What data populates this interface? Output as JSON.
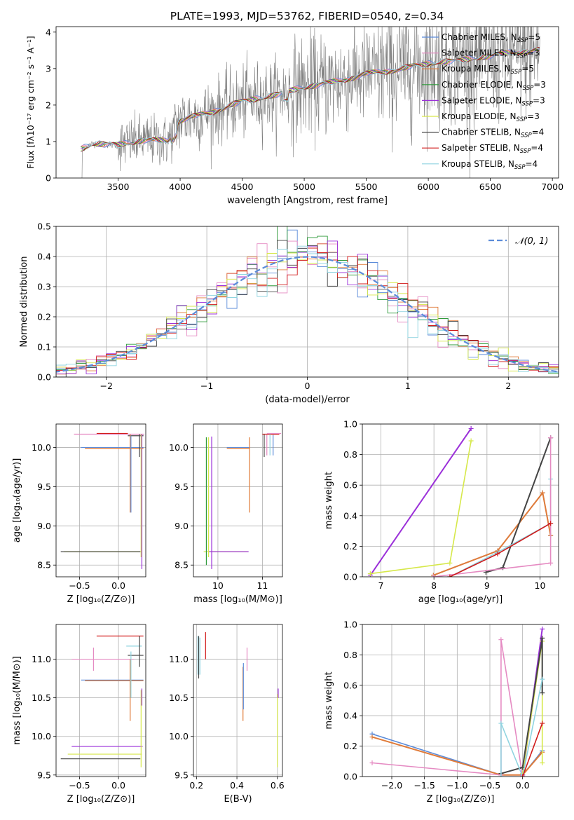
{
  "title": "PLATE=1993, MJD=53762, FIBERID=0540, z=0.34",
  "colors": {
    "Chabrier MILES": "#5b8bd9",
    "Salpeter MILES": "#e58ac2",
    "Kroupa MILES": "#e07b39",
    "Chabrier ELODIE": "#2e9a3a",
    "Salpeter ELODIE": "#9b30d9",
    "Kroupa ELODIE": "#d6e84a",
    "Chabrier STELIB": "#444444",
    "Salpeter STELIB": "#d11a1a",
    "Kroupa STELIB": "#8fd4e0",
    "data": "#808080",
    "normal": "#5b8bd9"
  },
  "legend": [
    {
      "name": "Chabrier MILES",
      "label": "Chabrier MILES, N",
      "sub": "SSP",
      "suffix": "=5"
    },
    {
      "name": "Salpeter MILES",
      "label": "Salpeter MILES, N",
      "sub": "SSP",
      "suffix": "=3"
    },
    {
      "name": "Kroupa MILES",
      "label": "Kroupa MILES, N",
      "sub": "SSP",
      "suffix": "=5"
    },
    {
      "name": "Chabrier ELODIE",
      "label": "Chabrier ELODIE, N",
      "sub": "SSP",
      "suffix": "=3"
    },
    {
      "name": "Salpeter ELODIE",
      "label": "Salpeter ELODIE, N",
      "sub": "SSP",
      "suffix": "=3"
    },
    {
      "name": "Kroupa ELODIE",
      "label": "Kroupa ELODIE, N",
      "sub": "SSP",
      "suffix": "=3"
    },
    {
      "name": "Chabrier STELIB",
      "label": "Chabrier STELIB, N",
      "sub": "SSP",
      "suffix": "=4"
    },
    {
      "name": "Salpeter STELIB",
      "label": "Salpeter STELIB, N",
      "sub": "SSP",
      "suffix": "=4"
    },
    {
      "name": "Kroupa STELIB",
      "label": "Kroupa STELIB, N",
      "sub": "SSP",
      "suffix": "=4"
    }
  ],
  "chart_data": [
    {
      "id": "spectrum",
      "type": "line",
      "xlabel": "wavelength [Angstrom, rest frame]",
      "ylabel": "Flux [f_λ 10^-17 erg cm^-2 s^-1 A^-1]",
      "xlim": [
        3000,
        7050
      ],
      "ylim": [
        0,
        4.15
      ],
      "xticks": [
        3500,
        4000,
        4500,
        5000,
        5500,
        6000,
        6500,
        7000
      ],
      "yticks": [
        0,
        1,
        2,
        3,
        4
      ],
      "grid": false,
      "legend_position": "top-right",
      "continuum": {
        "x": [
          3200,
          3300,
          3500,
          3700,
          3900,
          4000,
          4200,
          4500,
          4800,
          5000,
          5200,
          5500,
          5800,
          6000,
          6200,
          6500,
          6700,
          6900
        ],
        "y": [
          0.8,
          0.95,
          0.9,
          1.05,
          1.0,
          1.6,
          1.75,
          2.1,
          2.3,
          2.5,
          2.6,
          2.85,
          3.0,
          3.15,
          3.2,
          3.35,
          3.45,
          3.5
        ]
      }
    },
    {
      "id": "residuals",
      "type": "step",
      "xlabel": "(data-model)/error",
      "ylabel": "Normed distribution",
      "xlim": [
        -2.5,
        2.5
      ],
      "ylim": [
        0,
        0.5
      ],
      "xticks": [
        -2,
        -1,
        0,
        1,
        2
      ],
      "yticks": [
        0.0,
        0.1,
        0.2,
        0.3,
        0.4,
        0.5
      ],
      "grid": true,
      "bin_width": 0.1,
      "series_note": "9 histograms scattered around N(0,1)",
      "normal_label": "𝒩(0, 1)"
    },
    {
      "id": "age-Z",
      "type": "errorbar",
      "xlabel": "Z [log₁₀(Z/Z⊙)]",
      "ylabel": "age  [log₁₀(age/yr)]",
      "xlim": [
        -0.8,
        0.35
      ],
      "ylim": [
        8.35,
        10.3
      ],
      "xticks": [
        -0.5,
        0.0,
        0.5
      ],
      "yticks": [
        8.5,
        9.0,
        9.5,
        10.0
      ],
      "grid": true,
      "hbars": [
        {
          "series": "Salpeter MILES",
          "y": 10.17,
          "x1": -0.57,
          "x2": 0.33
        },
        {
          "series": "Salpeter STELIB",
          "y": 10.18,
          "x1": -0.28,
          "x2": 0.12
        },
        {
          "series": "Chabrier STELIB",
          "y": 10.15,
          "x1": 0.12,
          "x2": 0.32
        },
        {
          "series": "Chabrier MILES",
          "y": 10.0,
          "x1": -0.48,
          "x2": 0.32
        },
        {
          "series": "Kroupa MILES",
          "y": 9.99,
          "x1": -0.43,
          "x2": 0.32
        },
        {
          "series": "Kroupa ELODIE",
          "y": 8.67,
          "x1": -0.7,
          "x2": 0.3
        },
        {
          "series": "Chabrier STELIB",
          "y": 8.67,
          "x1": -0.74,
          "x2": 0.28
        }
      ],
      "vbars": [
        {
          "series": "Kroupa MILES",
          "x": 0.15,
          "y1": 9.17,
          "y2": 10.17
        },
        {
          "series": "Chabrier MILES",
          "x": 0.16,
          "y1": 9.17,
          "y2": 10.15
        },
        {
          "series": "Kroupa ELODIE",
          "x": 0.29,
          "y1": 8.6,
          "y2": 10.17
        },
        {
          "series": "Salpeter ELODIE",
          "x": 0.3,
          "y1": 8.45,
          "y2": 10.17
        },
        {
          "series": "Chabrier STELIB",
          "x": 0.27,
          "y1": 9.88,
          "y2": 10.17
        }
      ]
    },
    {
      "id": "age-mass",
      "type": "errorbar",
      "xlabel": "mass [log₁₀(M/M⊙)]",
      "ylabel": "",
      "xlim": [
        9.45,
        11.45
      ],
      "ylim": [
        8.35,
        10.3
      ],
      "xticks": [
        10,
        11
      ],
      "yticks": [
        8.5,
        9.0,
        9.5,
        10.0
      ],
      "grid": true,
      "hbars": [
        {
          "series": "Kroupa ELODIE",
          "y": 8.67,
          "x1": 9.68,
          "x2": 10.67
        },
        {
          "series": "Salpeter ELODIE",
          "y": 8.67,
          "x1": 9.8,
          "x2": 10.69
        },
        {
          "series": "Chabrier MILES",
          "y": 10.0,
          "x1": 10.2,
          "x2": 10.72
        },
        {
          "series": "Kroupa MILES",
          "y": 9.99,
          "x1": 10.2,
          "x2": 10.72
        },
        {
          "series": "Salpeter STELIB",
          "y": 10.17,
          "x1": 11.0,
          "x2": 11.38
        },
        {
          "series": "Salpeter MILES",
          "y": 10.18,
          "x1": 11.1,
          "x2": 11.42
        }
      ],
      "vbars": [
        {
          "series": "Chabrier ELODIE",
          "x": 9.74,
          "y1": 8.5,
          "y2": 10.13
        },
        {
          "series": "Kroupa ELODIE",
          "x": 9.79,
          "y1": 8.6,
          "y2": 10.13
        },
        {
          "series": "Salpeter ELODIE",
          "x": 9.86,
          "y1": 8.45,
          "y2": 10.14
        },
        {
          "series": "Kroupa MILES",
          "x": 10.71,
          "y1": 9.17,
          "y2": 10.13
        },
        {
          "series": "Chabrier STELIB",
          "x": 11.04,
          "y1": 9.88,
          "y2": 10.17
        },
        {
          "series": "Salpeter MILES",
          "x": 11.1,
          "y1": 9.9,
          "y2": 10.16
        },
        {
          "series": "Kroupa STELIB",
          "x": 11.17,
          "y1": 9.9,
          "y2": 10.17
        },
        {
          "series": "Chabrier MILES",
          "x": 11.24,
          "y1": 9.9,
          "y2": 10.16
        }
      ]
    },
    {
      "id": "weight-age",
      "type": "line",
      "xlabel": "age  [log₁₀(age/yr)]",
      "ylabel": "mass weight",
      "xlim": [
        6.65,
        10.35
      ],
      "ylim": [
        0,
        1.0
      ],
      "xticks": [
        7,
        8,
        9,
        10
      ],
      "yticks": [
        0.0,
        0.2,
        0.4,
        0.6,
        0.8,
        1.0
      ],
      "grid": true,
      "series": [
        {
          "name": "Salpeter ELODIE",
          "x": [
            6.8,
            8.7
          ],
          "y": [
            0.01,
            0.97
          ]
        },
        {
          "name": "Kroupa ELODIE",
          "x": [
            6.8,
            8.3,
            8.7
          ],
          "y": [
            0.02,
            0.09,
            0.89
          ]
        },
        {
          "name": "Chabrier MILES",
          "x": [
            7.99,
            9.2,
            10.05,
            10.2
          ],
          "y": [
            0.01,
            0.17,
            0.55,
            0.27
          ]
        },
        {
          "name": "Kroupa MILES",
          "x": [
            7.99,
            9.2,
            10.05,
            10.2
          ],
          "y": [
            0.01,
            0.17,
            0.55,
            0.27
          ]
        },
        {
          "name": "Chabrier STELIB",
          "x": [
            8.98,
            9.3,
            10.2
          ],
          "y": [
            0.03,
            0.06,
            0.91
          ]
        },
        {
          "name": "Kroupa STELIB",
          "x": [
            8.3,
            9.2,
            10.2,
            10.2
          ],
          "y": [
            0.0,
            0.16,
            0.35,
            0.64
          ]
        },
        {
          "name": "Salpeter MILES",
          "x": [
            7.99,
            10.2,
            10.2
          ],
          "y": [
            0.0,
            0.09,
            0.91
          ]
        },
        {
          "name": "Salpeter STELIB",
          "x": [
            8.3,
            9.2,
            10.2
          ],
          "y": [
            0.0,
            0.15,
            0.35
          ]
        }
      ]
    },
    {
      "id": "mass-Z",
      "type": "errorbar",
      "xlabel": "Z [log₁₀(Z/Z⊙)]",
      "ylabel": "mass [log₁₀(M/M⊙)]",
      "xlim": [
        -0.8,
        0.35
      ],
      "ylim": [
        9.48,
        11.45
      ],
      "xticks": [
        -0.5,
        0.0,
        0.5
      ],
      "yticks": [
        9.5,
        10.0,
        10.5,
        11.0
      ],
      "grid": true,
      "hbars": [
        {
          "series": "Salpeter STELIB",
          "y": 11.3,
          "x1": -0.28,
          "x2": 0.32
        },
        {
          "series": "Kroupa STELIB",
          "y": 11.17,
          "x1": 0.1,
          "x2": 0.3
        },
        {
          "series": "Chabrier STELIB",
          "y": 11.05,
          "x1": 0.12,
          "x2": 0.32
        },
        {
          "series": "Salpeter MILES",
          "y": 11.0,
          "x1": -0.6,
          "x2": 0.2
        },
        {
          "series": "Chabrier MILES",
          "y": 10.73,
          "x1": -0.48,
          "x2": 0.32
        },
        {
          "series": "Kroupa MILES",
          "y": 10.72,
          "x1": -0.43,
          "x2": 0.32
        },
        {
          "series": "Salpeter ELODIE",
          "y": 9.87,
          "x1": -0.6,
          "x2": 0.31
        },
        {
          "series": "Kroupa ELODIE",
          "y": 9.77,
          "x1": -0.65,
          "x2": 0.3
        },
        {
          "series": "Chabrier STELIB",
          "y": 9.71,
          "x1": -0.74,
          "x2": 0.28
        }
      ],
      "vbars": [
        {
          "series": "Salpeter MILES",
          "x": -0.32,
          "y1": 10.85,
          "y2": 11.15
        },
        {
          "series": "Kroupa MILES",
          "x": 0.15,
          "y1": 10.2,
          "y2": 11.0
        },
        {
          "series": "Kroupa STELIB",
          "x": 0.16,
          "y1": 10.5,
          "y2": 11.1
        },
        {
          "series": "Chabrier STELIB",
          "x": 0.27,
          "y1": 10.9,
          "y2": 11.3
        },
        {
          "series": "Kroupa ELODIE",
          "x": 0.29,
          "y1": 9.6,
          "y2": 10.6
        },
        {
          "series": "Salpeter ELODIE",
          "x": 0.3,
          "y1": 10.4,
          "y2": 10.62
        }
      ]
    },
    {
      "id": "mass-ebv",
      "type": "errorbar",
      "xlabel": "E(B-V)",
      "ylabel": "",
      "xlim": [
        0.185,
        0.625
      ],
      "ylim": [
        9.48,
        11.45
      ],
      "xticks": [
        0.2,
        0.4,
        0.6
      ],
      "yticks": [
        9.5,
        10.0,
        10.5,
        11.0
      ],
      "grid": true,
      "hbars": [],
      "vbars": [
        {
          "series": "Kroupa STELIB",
          "x": 0.207,
          "y1": 10.8,
          "y2": 11.3
        },
        {
          "series": "Chabrier STELIB",
          "x": 0.211,
          "y1": 10.75,
          "y2": 11.3
        },
        {
          "series": "Kroupa STELIB",
          "x": 0.217,
          "y1": 10.8,
          "y2": 11.28
        },
        {
          "series": "Salpeter STELIB",
          "x": 0.245,
          "y1": 11.0,
          "y2": 11.35
        },
        {
          "series": "Kroupa MILES",
          "x": 0.43,
          "y1": 10.2,
          "y2": 10.9
        },
        {
          "series": "Chabrier MILES",
          "x": 0.432,
          "y1": 10.35,
          "y2": 10.95
        },
        {
          "series": "Salpeter MILES",
          "x": 0.45,
          "y1": 10.85,
          "y2": 11.15
        },
        {
          "series": "Kroupa ELODIE",
          "x": 0.6,
          "y1": 9.6,
          "y2": 10.55
        },
        {
          "series": "Salpeter ELODIE",
          "x": 0.604,
          "y1": 10.5,
          "y2": 10.62
        }
      ]
    },
    {
      "id": "weight-Z",
      "type": "line",
      "xlabel": "Z [log₁₀(Z/Z⊙)]",
      "ylabel": "mass weight",
      "xlim": [
        -2.45,
        0.55
      ],
      "ylim": [
        0,
        1.0
      ],
      "xticks": [
        -2.0,
        -1.5,
        -1.0,
        -0.5,
        0.0
      ],
      "yticks": [
        0.0,
        0.2,
        0.4,
        0.6,
        0.8,
        1.0
      ],
      "grid": true,
      "series": [
        {
          "name": "Chabrier MILES",
          "x": [
            -2.3,
            -0.33,
            0.0,
            0.3
          ],
          "y": [
            0.28,
            0.01,
            0.01,
            0.17
          ]
        },
        {
          "name": "Kroupa MILES",
          "x": [
            -2.3,
            -0.33,
            0.0,
            0.3
          ],
          "y": [
            0.26,
            0.01,
            0.01,
            0.16
          ]
        },
        {
          "name": "Salpeter MILES",
          "x": [
            -2.3,
            -0.33,
            -0.33,
            0.0,
            0.3
          ],
          "y": [
            0.09,
            0.01,
            0.9,
            0.0,
            0.91
          ]
        },
        {
          "name": "Salpeter ELODIE",
          "x": [
            0.0,
            0.3
          ],
          "y": [
            0.01,
            0.97
          ]
        },
        {
          "name": "Kroupa ELODIE",
          "x": [
            0.0,
            0.3,
            0.3
          ],
          "y": [
            0.02,
            0.89,
            0.09
          ]
        },
        {
          "name": "Chabrier STELIB",
          "x": [
            -0.33,
            0.0,
            0.3,
            0.3
          ],
          "y": [
            0.02,
            0.06,
            0.91,
            0.55
          ]
        },
        {
          "name": "Kroupa STELIB",
          "x": [
            -0.33,
            -0.33,
            0.0,
            0.3
          ],
          "y": [
            0.0,
            0.35,
            0.0,
            0.64
          ]
        },
        {
          "name": "Salpeter STELIB",
          "x": [
            0.0,
            0.3
          ],
          "y": [
            0.0,
            0.35
          ]
        }
      ]
    }
  ]
}
